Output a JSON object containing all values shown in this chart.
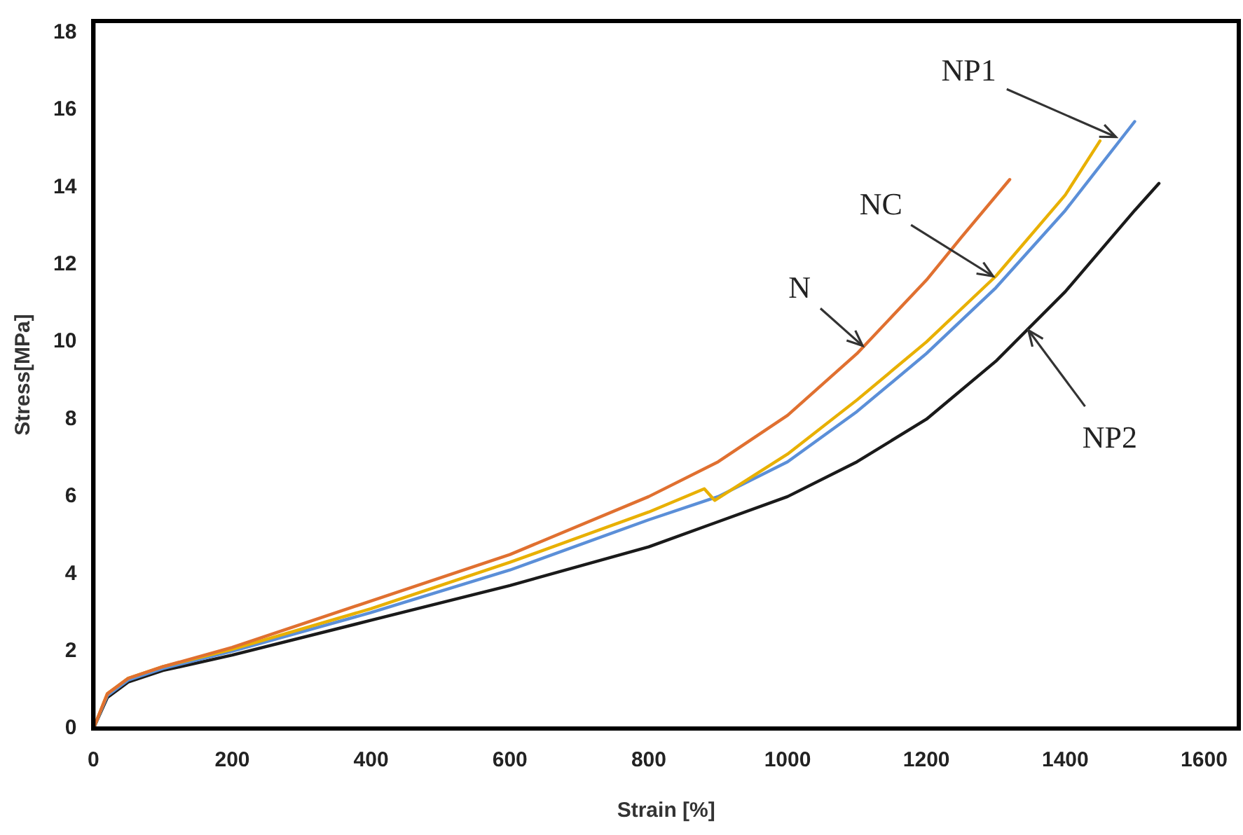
{
  "chart_data": {
    "type": "line",
    "xlabel": "Strain [%]",
    "ylabel": "Stress[MPa]",
    "xlim": [
      0,
      1650
    ],
    "ylim": [
      0,
      18.3
    ],
    "xticks": [
      0,
      200,
      400,
      600,
      800,
      1000,
      1200,
      1400,
      1600
    ],
    "yticks": [
      0,
      2,
      4,
      6,
      8,
      10,
      12,
      14,
      16,
      18
    ],
    "grid": false,
    "legend": false,
    "marker": "none",
    "line_style": "solid",
    "series": [
      {
        "color": "#e07030",
        "x": [
          0,
          20,
          50,
          100,
          200,
          400,
          600,
          800,
          900,
          1000,
          1100,
          1200,
          1250,
          1320
        ],
        "values": [
          0,
          0.9,
          1.3,
          1.6,
          2.1,
          3.3,
          4.5,
          6.0,
          6.9,
          8.1,
          9.7,
          11.6,
          12.7,
          14.2
        ]
      },
      {
        "color": "#e8b000",
        "x": [
          0,
          20,
          50,
          100,
          200,
          400,
          600,
          800,
          880,
          895,
          1000,
          1100,
          1200,
          1300,
          1400,
          1450
        ],
        "values": [
          0,
          0.9,
          1.3,
          1.6,
          2.05,
          3.1,
          4.3,
          5.6,
          6.2,
          5.9,
          7.1,
          8.5,
          10.0,
          11.7,
          13.8,
          15.2
        ]
      },
      {
        "color": "#5b8fd8",
        "x": [
          0,
          20,
          50,
          100,
          200,
          400,
          600,
          800,
          900,
          1000,
          1100,
          1200,
          1300,
          1400,
          1500
        ],
        "values": [
          0,
          0.85,
          1.25,
          1.55,
          2.0,
          3.0,
          4.1,
          5.4,
          6.0,
          6.9,
          8.2,
          9.7,
          11.4,
          13.4,
          15.7
        ]
      },
      {
        "color": "#1a1a1a",
        "x": [
          0,
          20,
          50,
          100,
          200,
          400,
          600,
          800,
          1000,
          1100,
          1200,
          1300,
          1400,
          1500,
          1535
        ],
        "values": [
          0,
          0.8,
          1.2,
          1.5,
          1.9,
          2.8,
          3.7,
          4.7,
          6.0,
          6.9,
          8.0,
          9.5,
          11.3,
          13.4,
          14.1
        ]
      }
    ],
    "annotations": [
      {
        "text": "N",
        "x": 1108,
        "y": 9.9
      },
      {
        "text": "NC",
        "x": 1296,
        "y": 11.7
      },
      {
        "text": "NP1",
        "x": 1473,
        "y": 15.3
      },
      {
        "text": "NP2",
        "x": 1347,
        "y": 10.3
      }
    ]
  }
}
